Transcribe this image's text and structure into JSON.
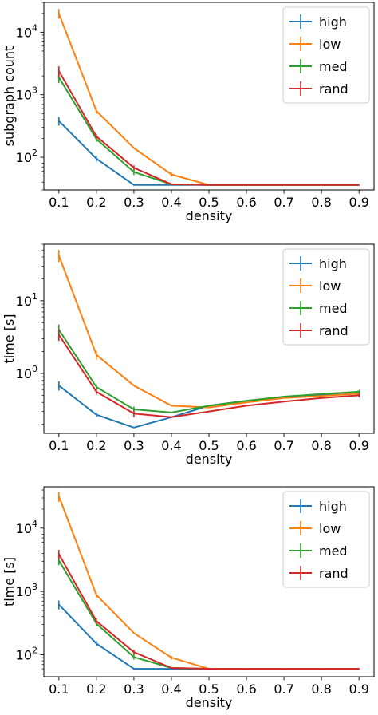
{
  "chart_data": [
    {
      "type": "line",
      "xlabel": "density",
      "ylabel": "subgraph count",
      "x": [
        0.1,
        0.2,
        0.3,
        0.4,
        0.5,
        0.6,
        0.7,
        0.8,
        0.9
      ],
      "xticks": [
        "0.1",
        "0.2",
        "0.3",
        "0.4",
        "0.5",
        "0.6",
        "0.7",
        "0.8",
        "0.9"
      ],
      "yscale": "log",
      "ylim": [
        30,
        30000
      ],
      "yticks": [
        {
          "value": 100,
          "base": "10",
          "exp": "2"
        },
        {
          "value": 1000,
          "base": "10",
          "exp": "3"
        },
        {
          "value": 10000,
          "base": "10",
          "exp": "4"
        }
      ],
      "legend_position": "top-right",
      "series": [
        {
          "name": "high",
          "color": "#1f77b4",
          "values": [
            380,
            95,
            36,
            36,
            36,
            36,
            36,
            36,
            36
          ],
          "errors": [
            60,
            10,
            0,
            0,
            0,
            0,
            0,
            0,
            0
          ]
        },
        {
          "name": "low",
          "color": "#ff7f0e",
          "values": [
            20000,
            550,
            140,
            53,
            36,
            36,
            36,
            36,
            36
          ],
          "errors": [
            3500,
            60,
            0,
            4,
            0,
            0,
            0,
            0,
            0
          ]
        },
        {
          "name": "med",
          "color": "#2ca02c",
          "values": [
            1900,
            195,
            58,
            37,
            36,
            36,
            36,
            36,
            36
          ],
          "errors": [
            350,
            20,
            6,
            0,
            0,
            0,
            0,
            0,
            0
          ]
        },
        {
          "name": "rand",
          "color": "#d62728",
          "values": [
            2400,
            215,
            68,
            37,
            36,
            36,
            36,
            36,
            36
          ],
          "errors": [
            450,
            20,
            6,
            0,
            0,
            0,
            0,
            0,
            0
          ]
        }
      ]
    },
    {
      "type": "line",
      "xlabel": "density",
      "ylabel": "time [s]",
      "x": [
        0.1,
        0.2,
        0.3,
        0.4,
        0.5,
        0.6,
        0.7,
        0.8,
        0.9
      ],
      "xticks": [
        "0.1",
        "0.2",
        "0.3",
        "0.4",
        "0.5",
        "0.6",
        "0.7",
        "0.8",
        "0.9"
      ],
      "yscale": "log",
      "ylim": [
        0.15,
        60
      ],
      "yticks": [
        {
          "value": 1,
          "base": "10",
          "exp": "0"
        },
        {
          "value": 10,
          "base": "10",
          "exp": "1"
        }
      ],
      "legend_position": "top-right",
      "series": [
        {
          "name": "high",
          "color": "#1f77b4",
          "values": [
            0.68,
            0.27,
            0.18,
            0.25,
            0.36,
            0.42,
            0.47,
            0.5,
            0.53
          ],
          "errors": [
            0.1,
            0.02,
            0,
            0,
            0,
            0,
            0,
            0,
            0.03
          ]
        },
        {
          "name": "low",
          "color": "#ff7f0e",
          "values": [
            42,
            1.8,
            0.68,
            0.36,
            0.34,
            0.4,
            0.46,
            0.49,
            0.53
          ],
          "errors": [
            8,
            0.25,
            0,
            0,
            0,
            0,
            0,
            0,
            0.03
          ]
        },
        {
          "name": "med",
          "color": "#2ca02c",
          "values": [
            4.0,
            0.65,
            0.32,
            0.29,
            0.36,
            0.42,
            0.48,
            0.52,
            0.56
          ],
          "errors": [
            0.7,
            0.06,
            0.03,
            0,
            0,
            0,
            0,
            0,
            0.03
          ]
        },
        {
          "name": "rand",
          "color": "#d62728",
          "values": [
            3.4,
            0.56,
            0.28,
            0.25,
            0.3,
            0.36,
            0.41,
            0.46,
            0.5
          ],
          "errors": [
            0.6,
            0.05,
            0.03,
            0,
            0,
            0,
            0,
            0,
            0.03
          ]
        }
      ]
    },
    {
      "type": "line",
      "xlabel": "density",
      "ylabel": "time [s]",
      "x": [
        0.1,
        0.2,
        0.3,
        0.4,
        0.5,
        0.6,
        0.7,
        0.8,
        0.9
      ],
      "xticks": [
        "0.1",
        "0.2",
        "0.3",
        "0.4",
        "0.5",
        "0.6",
        "0.7",
        "0.8",
        "0.9"
      ],
      "yscale": "log",
      "ylim": [
        45,
        45000
      ],
      "yticks": [
        {
          "value": 100,
          "base": "10",
          "exp": "2"
        },
        {
          "value": 1000,
          "base": "10",
          "exp": "3"
        },
        {
          "value": 10000,
          "base": "10",
          "exp": "4"
        }
      ],
      "legend_position": "top-right",
      "series": [
        {
          "name": "high",
          "color": "#1f77b4",
          "values": [
            620,
            150,
            60,
            60,
            60,
            60,
            60,
            60,
            60
          ],
          "errors": [
            100,
            15,
            0,
            0,
            0,
            0,
            0,
            0,
            0
          ]
        },
        {
          "name": "low",
          "color": "#ff7f0e",
          "values": [
            32000,
            880,
            220,
            90,
            60,
            60,
            60,
            60,
            60
          ],
          "errors": [
            6000,
            80,
            0,
            6,
            0,
            0,
            0,
            0,
            0
          ]
        },
        {
          "name": "med",
          "color": "#2ca02c",
          "values": [
            3100,
            310,
            92,
            62,
            60,
            60,
            60,
            60,
            60
          ],
          "errors": [
            500,
            30,
            8,
            0,
            0,
            0,
            0,
            0,
            0
          ]
        },
        {
          "name": "rand",
          "color": "#d62728",
          "values": [
            3900,
            340,
            110,
            62,
            60,
            60,
            60,
            60,
            60
          ],
          "errors": [
            650,
            35,
            10,
            0,
            0,
            0,
            0,
            0,
            0
          ]
        }
      ]
    }
  ]
}
